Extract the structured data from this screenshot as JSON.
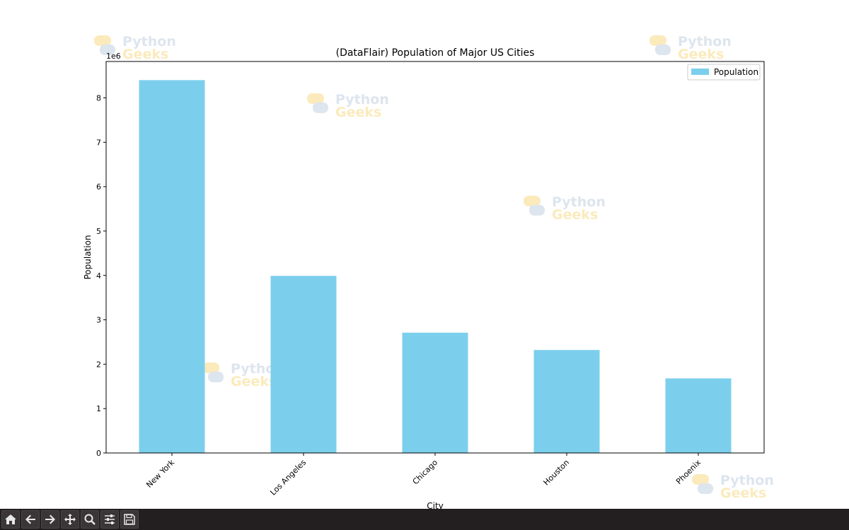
{
  "chart_data": {
    "type": "bar",
    "title": "(DataFlair) Population of Major US Cities",
    "xlabel": "City",
    "ylabel": "Population",
    "offset_label": "1e6",
    "categories": [
      "New York",
      "Los Angeles",
      "Chicago",
      "Houston",
      "Phoenix"
    ],
    "series": [
      {
        "name": "Population",
        "values": [
          8400000,
          3990000,
          2710000,
          2320000,
          1680000
        ]
      }
    ],
    "yticks": [
      0,
      1,
      2,
      3,
      4,
      5,
      6,
      7,
      8
    ],
    "ylim": [
      0,
      8820000
    ],
    "bar_color": "#7ccfec",
    "legend": "top-right",
    "grid": false
  },
  "watermark": {
    "line1": "Python",
    "line2": "Geeks"
  },
  "toolbar": {
    "buttons": [
      {
        "name": "home-icon"
      },
      {
        "name": "back-arrow-icon"
      },
      {
        "name": "forward-arrow-icon"
      },
      {
        "name": "pan-icon"
      },
      {
        "name": "zoom-icon"
      },
      {
        "name": "configure-subplots-icon"
      },
      {
        "name": "save-icon"
      }
    ]
  }
}
